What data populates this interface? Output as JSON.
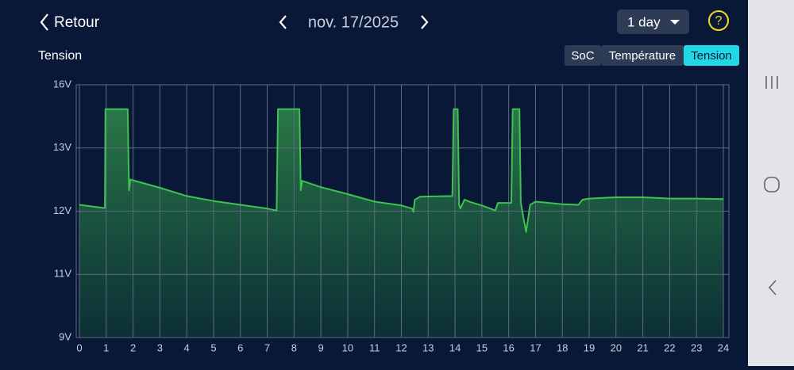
{
  "header": {
    "back": "Retour",
    "date": "nov. 17/2025",
    "range": "1 day",
    "help": "?"
  },
  "tabs": [
    "SoC",
    "Température",
    "Tension"
  ],
  "active_tab": 2,
  "chart_data": {
    "type": "line",
    "title": "Tension",
    "x": [
      0,
      0.9,
      0.95,
      0.97,
      1.8,
      1.85,
      1.9,
      3,
      4,
      5,
      6,
      7,
      7.35,
      7.4,
      8.2,
      8.25,
      8.3,
      9,
      10,
      11,
      12,
      12.4,
      12.45,
      12.5,
      12.7,
      13.9,
      13.95,
      14.1,
      14.15,
      14.2,
      14.35,
      14.6,
      15,
      15.5,
      15.6,
      16.1,
      16.15,
      16.4,
      16.45,
      16.55,
      16.65,
      16.8,
      17,
      18,
      18.6,
      18.75,
      19,
      20,
      21,
      22,
      23,
      24
    ],
    "series": [
      {
        "color": "#3fc24f",
        "values": [
          12.1,
          12.05,
          12.05,
          14.84,
          14.84,
          12.33,
          12.5,
          12.37,
          12.24,
          12.16,
          12.1,
          12.04,
          12.01,
          14.84,
          14.84,
          12.33,
          12.48,
          12.38,
          12.27,
          12.15,
          12.09,
          12.04,
          11.99,
          12.18,
          12.23,
          12.24,
          14.84,
          14.84,
          12.1,
          12.04,
          12.18,
          12.14,
          12.09,
          12.01,
          12.13,
          12.13,
          14.84,
          14.84,
          12.14,
          11.89,
          11.67,
          12.1,
          12.15,
          12.11,
          12.1,
          12.18,
          12.2,
          12.22,
          12.22,
          12.2,
          12.2,
          12.19
        ]
      }
    ],
    "xlim": [
      0,
      24
    ],
    "xticks": [
      0,
      1,
      2,
      3,
      4,
      5,
      6,
      7,
      8,
      9,
      10,
      11,
      12,
      13,
      14,
      15,
      16,
      17,
      18,
      19,
      20,
      21,
      22,
      23,
      24
    ],
    "ylim": [
      9,
      16
    ],
    "yticks": [
      {
        "value": 9,
        "label": "9V"
      },
      {
        "value": 11,
        "label": "11V"
      },
      {
        "value": 12,
        "label": "12V"
      },
      {
        "value": 13,
        "label": "13V"
      },
      {
        "value": 16,
        "label": "16V"
      }
    ],
    "grid": true
  }
}
